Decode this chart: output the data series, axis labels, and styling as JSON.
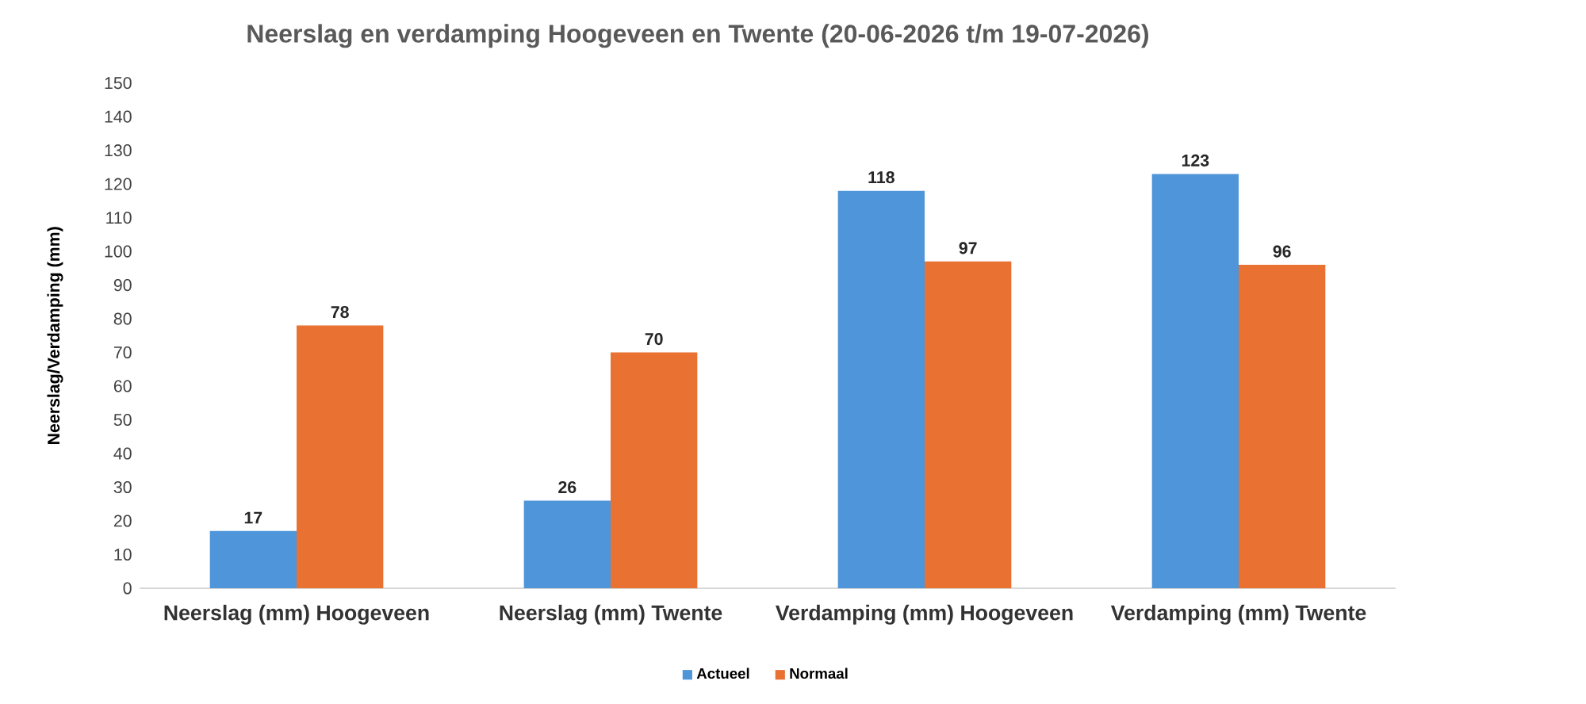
{
  "chart_data": {
    "type": "bar",
    "title": "Neerslag en verdamping Hoogeveen en Twente (20-06-2026 t/m 19-07-2026)",
    "ylabel": "Neerslag/Verdamping (mm)",
    "categories": [
      "Neerslag (mm) Hoogeveen",
      "Neerslag (mm) Twente",
      "Verdamping (mm) Hoogeveen",
      "Verdamping (mm) Twente"
    ],
    "series": [
      {
        "name": "Actueel",
        "color": "#4e95d9",
        "values": [
          17,
          26,
          118,
          123
        ]
      },
      {
        "name": "Normaal",
        "color": "#e97132",
        "values": [
          78,
          70,
          97,
          96
        ]
      }
    ],
    "ylim": [
      0,
      150
    ],
    "yticks": [
      0,
      10,
      20,
      30,
      40,
      50,
      60,
      70,
      80,
      90,
      100,
      110,
      120,
      130,
      140,
      150
    ],
    "data_labels": true,
    "legend": "bottom"
  }
}
